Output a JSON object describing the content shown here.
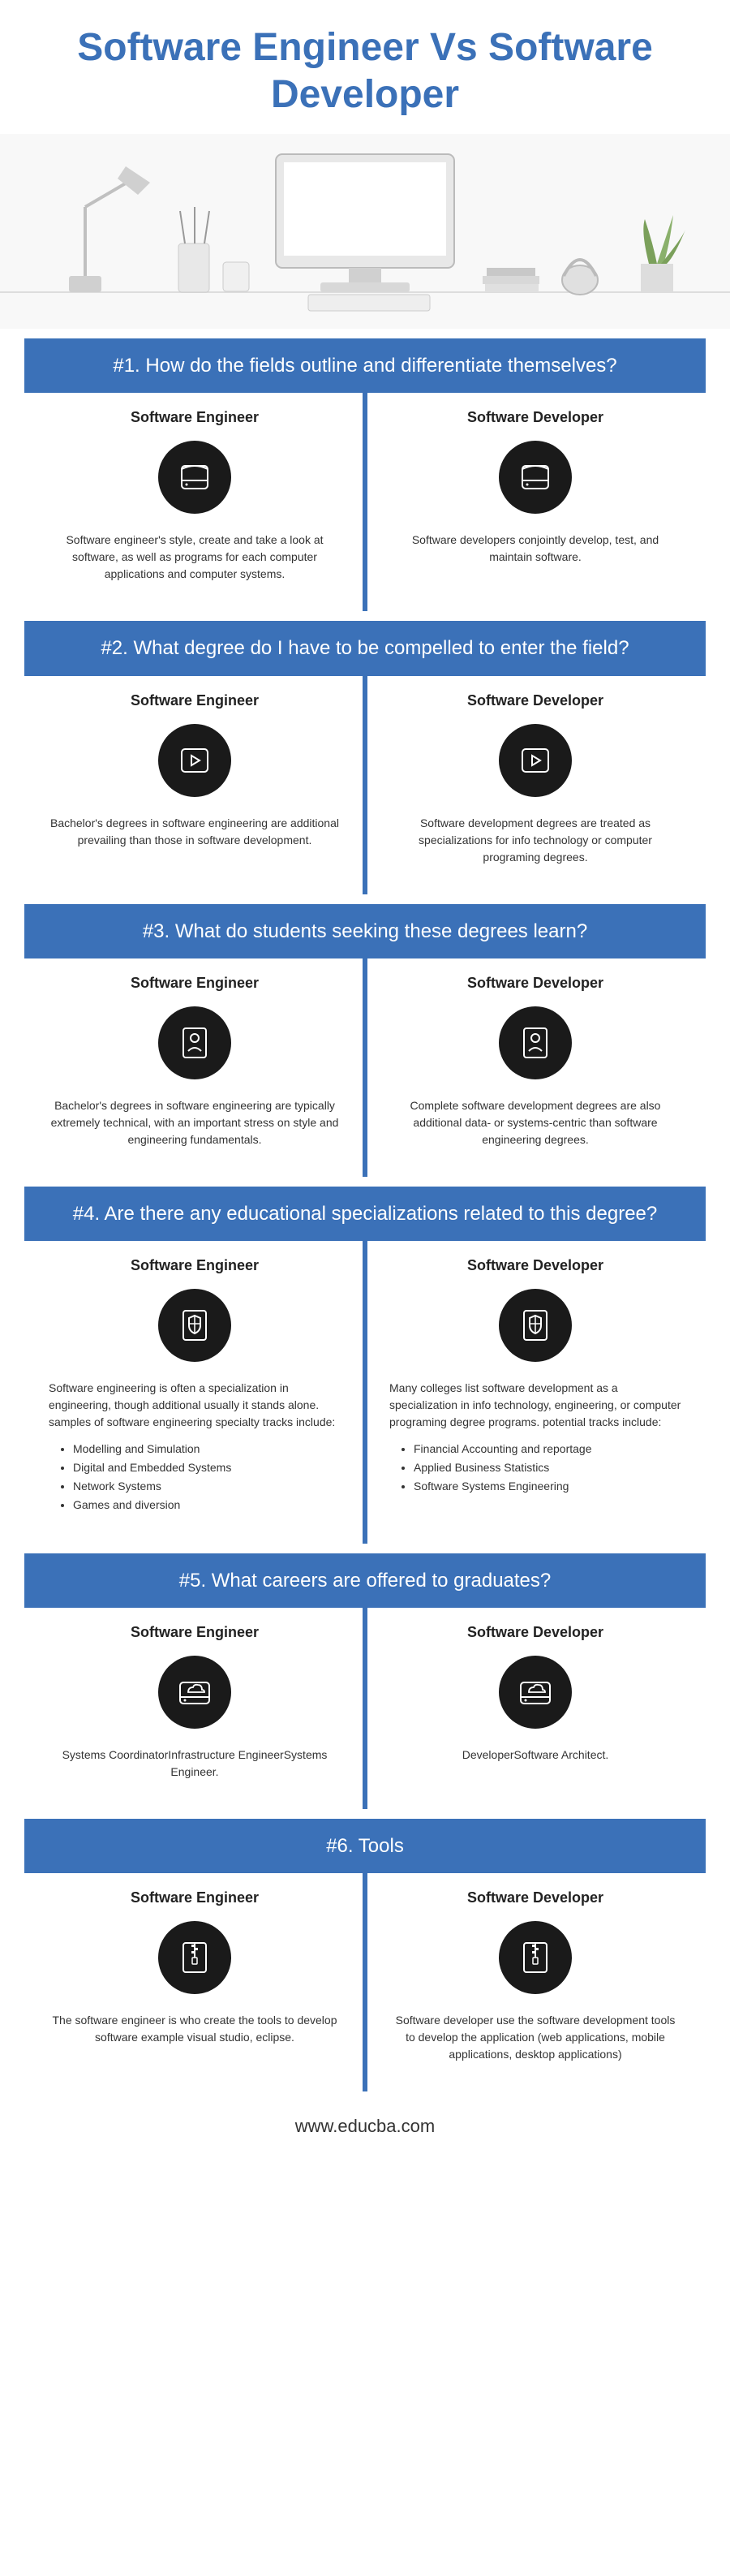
{
  "colors": {
    "primary_blue": "#3b71b8",
    "icon_bg": "#1a1a1a",
    "text_dark": "#222222",
    "text_body": "#333333",
    "title_fontsize": 48,
    "header_fontsize": 24,
    "coltitle_fontsize": 18,
    "body_fontsize": 14
  },
  "title": "Software Engineer Vs Software Developer",
  "footer": "www.educba.com",
  "labels": {
    "left": "Software Engineer",
    "right": "Software Developer"
  },
  "sections": [
    {
      "header": "#1. How do the fields outline and differentiate themselves?",
      "icon": "hdd",
      "left": "Software engineer's style, create and take a look at software, as well as programs for each computer applications and computer systems.",
      "right": "Software developers conjointly develop, test, and maintain software."
    },
    {
      "header": "#2. What degree do I have to be compelled to enter the field?",
      "icon": "play",
      "left": "Bachelor's degrees in software engineering are  additional prevailing than those in software development.",
      "right": "Software development degrees are treated as specializations for info technology or computer programing degrees."
    },
    {
      "header": "#3. What do students seeking these degrees learn?",
      "icon": "person",
      "left": "Bachelor's degrees in software engineering are typically extremely technical, with an important stress on style and engineering fundamentals.",
      "right": "Complete software development degrees are also additional data- or systems-centric than software engineering degrees."
    },
    {
      "header": "#4. Are there any educational specializations related to this degree?",
      "icon": "shield",
      "left": "Software engineering is often a specialization in engineering, though additional usually it stands alone. samples of software  engineering specialty tracks include:",
      "left_bullets": [
        "Modelling and Simulation",
        "Digital and Embedded Systems",
        "Network Systems",
        "Games and diversion"
      ],
      "right": "Many colleges list software development as a specialization in info technology, engineering, or computer programing degree programs. potential tracks include:",
      "right_bullets": [
        "Financial Accounting and reportage",
        "Applied Business Statistics",
        "Software Systems Engineering"
      ]
    },
    {
      "header": "#5. What careers are offered to graduates?",
      "icon": "cloud",
      "left": "Systems CoordinatorInfrastructure EngineerSystems Engineer.",
      "right": "DeveloperSoftware Architect."
    },
    {
      "header": "#6. Tools",
      "icon": "zip",
      "left": "The software engineer is who create the tools to develop software example visual studio, eclipse.",
      "right": "Software developer use the software development tools to develop the application (web applications, mobile applications, desktop applications)"
    }
  ]
}
